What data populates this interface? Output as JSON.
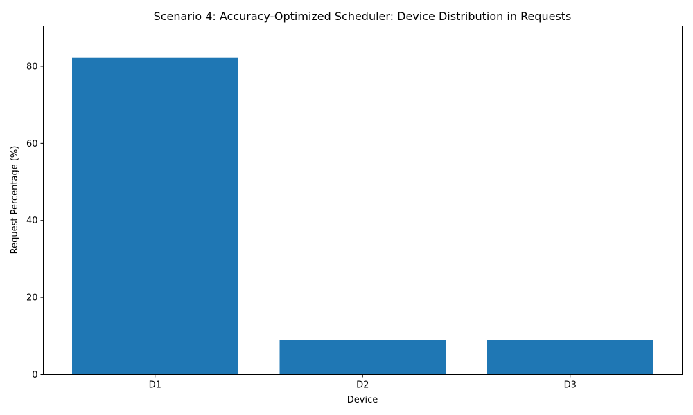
{
  "chart_data": {
    "type": "bar",
    "title": "Scenario 4: Accuracy-Optimized Scheduler: Device Distribution in Requests",
    "xlabel": "Device",
    "ylabel": "Request Percentage (%)",
    "categories": [
      "D1",
      "D2",
      "D3"
    ],
    "values": [
      82.2,
      8.9,
      8.9
    ],
    "ylim": [
      0,
      90.5
    ],
    "yticks": [
      0,
      20,
      40,
      60,
      80
    ],
    "bar_color": "#1f77b4",
    "grid": false,
    "legend": "none"
  }
}
